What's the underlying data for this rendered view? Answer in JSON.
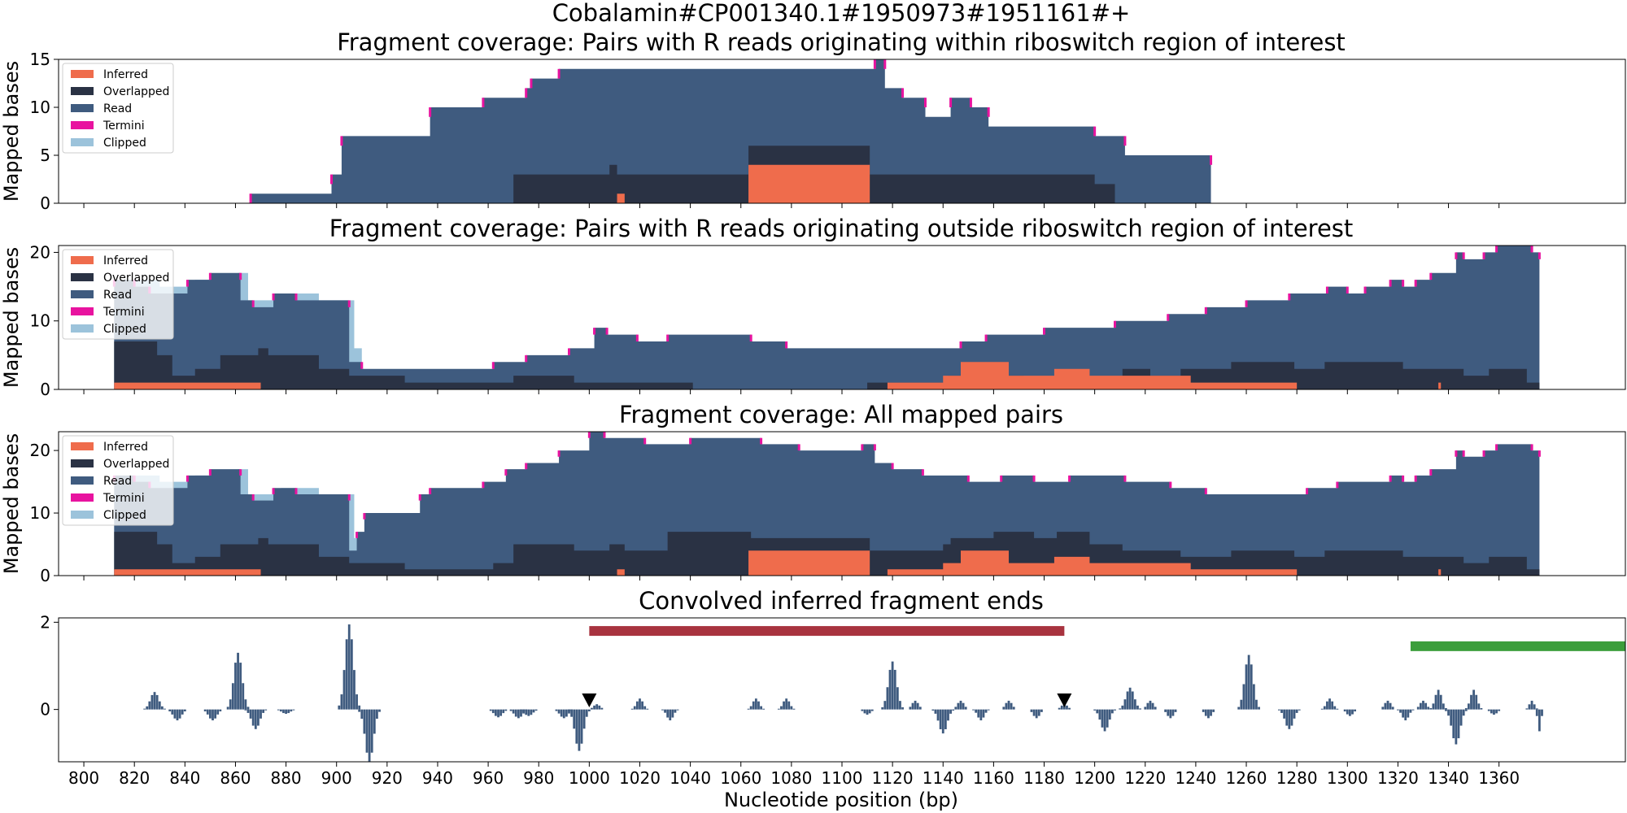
{
  "figure": {
    "suptitle": "Cobalamin#CP001340.1#1950973#1951161#+",
    "xlabel": "Nucleotide position (bp)",
    "colors": {
      "Inferred": "#ef6c4c",
      "Overlapped": "#2a3244",
      "Read": "#3f5b7f",
      "Termini": "#e8139f",
      "Clipped": "#9cc3db",
      "region_red": "#a8333f",
      "region_green": "#3b9e3b",
      "marker": "#000000",
      "conv_bar": "#3f5b7f"
    }
  },
  "chart_data": [
    {
      "type": "area",
      "title": "Fragment coverage: Pairs with R reads originating within riboswitch region of interest",
      "ylabel": "Mapped bases",
      "xlim": [
        790,
        1410
      ],
      "ylim": [
        0,
        15
      ],
      "yticks": [
        0,
        5,
        10,
        15
      ],
      "legend_position": "upper-left",
      "legend": [
        "Inferred",
        "Overlapped",
        "Read",
        "Termini",
        "Clipped"
      ],
      "read_total": [
        [
          866,
          1
        ],
        [
          897,
          1
        ],
        [
          898,
          3
        ],
        [
          902,
          7
        ],
        [
          935,
          7
        ],
        [
          937,
          10
        ],
        [
          958,
          11
        ],
        [
          975,
          12
        ],
        [
          977,
          13
        ],
        [
          988,
          14
        ],
        [
          1113,
          15
        ],
        [
          1117,
          12
        ],
        [
          1124,
          11
        ],
        [
          1133,
          9
        ],
        [
          1143,
          11
        ],
        [
          1151,
          10
        ],
        [
          1158,
          8
        ],
        [
          1200,
          7
        ],
        [
          1212,
          5
        ],
        [
          1245,
          5
        ],
        [
          1246,
          0
        ]
      ],
      "overlapped_total": [
        [
          970,
          3
        ],
        [
          1008,
          4
        ],
        [
          1011,
          3
        ],
        [
          1063,
          6
        ],
        [
          1111,
          3
        ],
        [
          1113,
          3
        ],
        [
          1163,
          3
        ],
        [
          1200,
          2
        ],
        [
          1208,
          0
        ]
      ],
      "inferred": [
        [
          1011,
          1
        ],
        [
          1014,
          0
        ],
        [
          1063,
          4
        ],
        [
          1111,
          0
        ]
      ]
    },
    {
      "type": "area",
      "title": "Fragment coverage: Pairs with R reads originating outside riboswitch region of interest",
      "ylabel": "Mapped bases",
      "xlim": [
        790,
        1410
      ],
      "ylim": [
        0,
        21
      ],
      "yticks": [
        0,
        10,
        20
      ],
      "legend_position": "upper-left",
      "legend": [
        "Inferred",
        "Overlapped",
        "Read",
        "Termini",
        "Clipped"
      ],
      "clipped_total": [
        [
          812,
          16
        ],
        [
          830,
          15
        ],
        [
          838,
          15
        ],
        [
          844,
          16
        ],
        [
          861,
          17
        ],
        [
          865,
          13
        ],
        [
          878,
          14
        ],
        [
          893,
          13
        ],
        [
          901,
          13
        ],
        [
          907,
          6
        ],
        [
          910,
          3
        ],
        [
          911,
          0
        ]
      ],
      "read_total": [
        [
          812,
          16
        ],
        [
          820,
          15
        ],
        [
          826,
          14
        ],
        [
          841,
          16
        ],
        [
          850,
          17
        ],
        [
          862,
          13
        ],
        [
          867,
          12
        ],
        [
          875,
          14
        ],
        [
          884,
          13
        ],
        [
          903,
          13
        ],
        [
          905,
          4
        ],
        [
          910,
          3
        ],
        [
          930,
          3
        ],
        [
          962,
          4
        ],
        [
          975,
          5
        ],
        [
          992,
          6
        ],
        [
          1002,
          9
        ],
        [
          1007,
          8
        ],
        [
          1019,
          7
        ],
        [
          1031,
          8
        ],
        [
          1064,
          7
        ],
        [
          1078,
          6
        ],
        [
          1110,
          6
        ],
        [
          1147,
          7
        ],
        [
          1157,
          8
        ],
        [
          1180,
          9
        ],
        [
          1208,
          10
        ],
        [
          1229,
          11
        ],
        [
          1244,
          12
        ],
        [
          1260,
          13
        ],
        [
          1277,
          14
        ],
        [
          1292,
          15
        ],
        [
          1300,
          14
        ],
        [
          1307,
          15
        ],
        [
          1317,
          16
        ],
        [
          1322,
          15
        ],
        [
          1327,
          16
        ],
        [
          1333,
          17
        ],
        [
          1343,
          20
        ],
        [
          1346,
          19
        ],
        [
          1354,
          20
        ],
        [
          1359,
          21
        ],
        [
          1373,
          20
        ],
        [
          1376,
          0
        ]
      ],
      "overlapped_total": [
        [
          812,
          7
        ],
        [
          829,
          5
        ],
        [
          835,
          2
        ],
        [
          844,
          3
        ],
        [
          854,
          5
        ],
        [
          869,
          6
        ],
        [
          873,
          5
        ],
        [
          893,
          3
        ],
        [
          905,
          2
        ],
        [
          921,
          2
        ],
        [
          927,
          1
        ],
        [
          962,
          1
        ],
        [
          970,
          2
        ],
        [
          994,
          1
        ],
        [
          1041,
          0
        ],
        [
          1110,
          1
        ],
        [
          1130,
          1
        ],
        [
          1142,
          2
        ],
        [
          1172,
          1
        ],
        [
          1211,
          3
        ],
        [
          1222,
          2
        ],
        [
          1234,
          3
        ],
        [
          1254,
          4
        ],
        [
          1271,
          4
        ],
        [
          1279,
          3
        ],
        [
          1291,
          4
        ],
        [
          1322,
          3
        ],
        [
          1340,
          3
        ],
        [
          1346,
          2
        ],
        [
          1356,
          3
        ],
        [
          1371,
          1
        ],
        [
          1376,
          0
        ]
      ],
      "inferred": [
        [
          812,
          1
        ],
        [
          870,
          0
        ],
        [
          1118,
          1
        ],
        [
          1140,
          2
        ],
        [
          1147,
          4
        ],
        [
          1166,
          2
        ],
        [
          1184,
          3
        ],
        [
          1198,
          2
        ],
        [
          1238,
          1
        ],
        [
          1280,
          0
        ],
        [
          1336,
          1
        ],
        [
          1337,
          0
        ]
      ]
    },
    {
      "type": "area",
      "title": "Fragment coverage: All mapped pairs",
      "ylabel": "Mapped bases",
      "xlim": [
        790,
        1410
      ],
      "ylim": [
        0,
        23
      ],
      "yticks": [
        0,
        10,
        20
      ],
      "legend_position": "upper-left",
      "legend": [
        "Inferred",
        "Overlapped",
        "Read",
        "Termini",
        "Clipped"
      ],
      "clipped_total": [
        [
          812,
          16
        ],
        [
          830,
          15
        ],
        [
          838,
          15
        ],
        [
          844,
          16
        ],
        [
          861,
          17
        ],
        [
          865,
          13
        ],
        [
          878,
          14
        ],
        [
          893,
          13
        ],
        [
          901,
          13
        ],
        [
          907,
          6
        ],
        [
          910,
          0
        ]
      ],
      "read_total": [
        [
          812,
          16
        ],
        [
          820,
          15
        ],
        [
          826,
          14
        ],
        [
          841,
          16
        ],
        [
          850,
          17
        ],
        [
          862,
          13
        ],
        [
          867,
          12
        ],
        [
          875,
          14
        ],
        [
          884,
          13
        ],
        [
          903,
          13
        ],
        [
          905,
          4
        ],
        [
          908,
          7
        ],
        [
          911,
          10
        ],
        [
          927,
          10
        ],
        [
          933,
          13
        ],
        [
          937,
          14
        ],
        [
          958,
          15
        ],
        [
          967,
          17
        ],
        [
          975,
          18
        ],
        [
          988,
          20
        ],
        [
          1000,
          23
        ],
        [
          1006,
          22
        ],
        [
          1022,
          21
        ],
        [
          1040,
          22
        ],
        [
          1068,
          21
        ],
        [
          1083,
          20
        ],
        [
          1108,
          21
        ],
        [
          1113,
          18
        ],
        [
          1120,
          17
        ],
        [
          1132,
          16
        ],
        [
          1150,
          15
        ],
        [
          1163,
          16
        ],
        [
          1176,
          15
        ],
        [
          1190,
          16
        ],
        [
          1200,
          16
        ],
        [
          1212,
          15
        ],
        [
          1230,
          14
        ],
        [
          1244,
          13
        ],
        [
          1270,
          13
        ],
        [
          1284,
          14
        ],
        [
          1296,
          15
        ],
        [
          1307,
          15
        ],
        [
          1317,
          16
        ],
        [
          1322,
          15
        ],
        [
          1327,
          16
        ],
        [
          1333,
          17
        ],
        [
          1343,
          20
        ],
        [
          1346,
          19
        ],
        [
          1354,
          20
        ],
        [
          1359,
          21
        ],
        [
          1373,
          20
        ],
        [
          1376,
          0
        ]
      ],
      "overlapped_total": [
        [
          812,
          7
        ],
        [
          829,
          5
        ],
        [
          835,
          2
        ],
        [
          844,
          3
        ],
        [
          854,
          5
        ],
        [
          869,
          6
        ],
        [
          873,
          5
        ],
        [
          893,
          3
        ],
        [
          905,
          2
        ],
        [
          921,
          2
        ],
        [
          927,
          1
        ],
        [
          962,
          2
        ],
        [
          970,
          5
        ],
        [
          994,
          4
        ],
        [
          1008,
          5
        ],
        [
          1014,
          4
        ],
        [
          1031,
          7
        ],
        [
          1064,
          6
        ],
        [
          1111,
          4
        ],
        [
          1140,
          5
        ],
        [
          1143,
          6
        ],
        [
          1160,
          7
        ],
        [
          1176,
          6
        ],
        [
          1185,
          7
        ],
        [
          1198,
          5
        ],
        [
          1211,
          4
        ],
        [
          1234,
          3
        ],
        [
          1254,
          4
        ],
        [
          1271,
          4
        ],
        [
          1279,
          3
        ],
        [
          1291,
          4
        ],
        [
          1322,
          3
        ],
        [
          1340,
          3
        ],
        [
          1346,
          2
        ],
        [
          1356,
          3
        ],
        [
          1371,
          1
        ],
        [
          1376,
          0
        ]
      ],
      "inferred": [
        [
          812,
          1
        ],
        [
          870,
          0
        ],
        [
          1011,
          1
        ],
        [
          1014,
          0
        ],
        [
          1063,
          4
        ],
        [
          1111,
          0
        ],
        [
          1118,
          1
        ],
        [
          1140,
          2
        ],
        [
          1147,
          4
        ],
        [
          1166,
          2
        ],
        [
          1184,
          3
        ],
        [
          1198,
          2
        ],
        [
          1238,
          1
        ],
        [
          1280,
          0
        ],
        [
          1336,
          1
        ],
        [
          1337,
          0
        ]
      ]
    },
    {
      "type": "bar",
      "title": "Convolved inferred fragment ends",
      "ylabel": "",
      "xlim": [
        790,
        1410
      ],
      "ylim": [
        -1.2,
        2.1
      ],
      "yticks": [
        0,
        2
      ],
      "xticks": [
        800,
        820,
        840,
        860,
        880,
        900,
        920,
        940,
        960,
        980,
        1000,
        1020,
        1040,
        1060,
        1080,
        1100,
        1120,
        1140,
        1160,
        1180,
        1200,
        1220,
        1240,
        1260,
        1280,
        1300,
        1320,
        1340,
        1360
      ],
      "regions": [
        {
          "start": 1000,
          "end": 1188,
          "y": 1.8,
          "color": "region_red"
        },
        {
          "start": 1325,
          "end": 1410,
          "y": 1.45,
          "color": "region_green"
        }
      ],
      "markers": [
        1000,
        1188
      ],
      "bumps": [
        [
          828,
          0.4,
          4
        ],
        [
          837,
          -0.25,
          4
        ],
        [
          851,
          -0.25,
          4
        ],
        [
          861,
          1.3,
          4
        ],
        [
          868,
          -0.45,
          4
        ],
        [
          880,
          -0.1,
          4
        ],
        [
          905,
          1.95,
          4
        ],
        [
          913,
          -1.2,
          4
        ],
        [
          964,
          -0.18,
          4
        ],
        [
          972,
          -0.2,
          4
        ],
        [
          976,
          -0.15,
          4
        ],
        [
          990,
          -0.2,
          4
        ],
        [
          996,
          -0.95,
          4
        ],
        [
          1003,
          0.12,
          3
        ],
        [
          1020,
          0.25,
          3
        ],
        [
          1032,
          -0.25,
          3
        ],
        [
          1066,
          0.25,
          3
        ],
        [
          1078,
          0.25,
          3
        ],
        [
          1110,
          -0.12,
          3
        ],
        [
          1120,
          1.1,
          4
        ],
        [
          1129,
          0.2,
          3
        ],
        [
          1140,
          -0.55,
          4
        ],
        [
          1147,
          0.2,
          3
        ],
        [
          1155,
          -0.25,
          3
        ],
        [
          1166,
          0.2,
          3
        ],
        [
          1177,
          -0.2,
          3
        ],
        [
          1188,
          0.12,
          3
        ],
        [
          1204,
          -0.5,
          4
        ],
        [
          1214,
          0.5,
          4
        ],
        [
          1222,
          0.2,
          3
        ],
        [
          1230,
          -0.2,
          3
        ],
        [
          1245,
          -0.2,
          3
        ],
        [
          1261,
          1.25,
          4
        ],
        [
          1277,
          -0.45,
          4
        ],
        [
          1293,
          0.25,
          3
        ],
        [
          1301,
          -0.15,
          3
        ],
        [
          1316,
          0.2,
          3
        ],
        [
          1323,
          -0.25,
          3
        ],
        [
          1330,
          0.2,
          3
        ],
        [
          1336,
          0.45,
          3
        ],
        [
          1343,
          -0.8,
          4
        ],
        [
          1350,
          0.45,
          3
        ],
        [
          1358,
          -0.12,
          3
        ],
        [
          1373,
          0.2,
          2
        ],
        [
          1376,
          -0.5,
          1
        ]
      ]
    }
  ]
}
